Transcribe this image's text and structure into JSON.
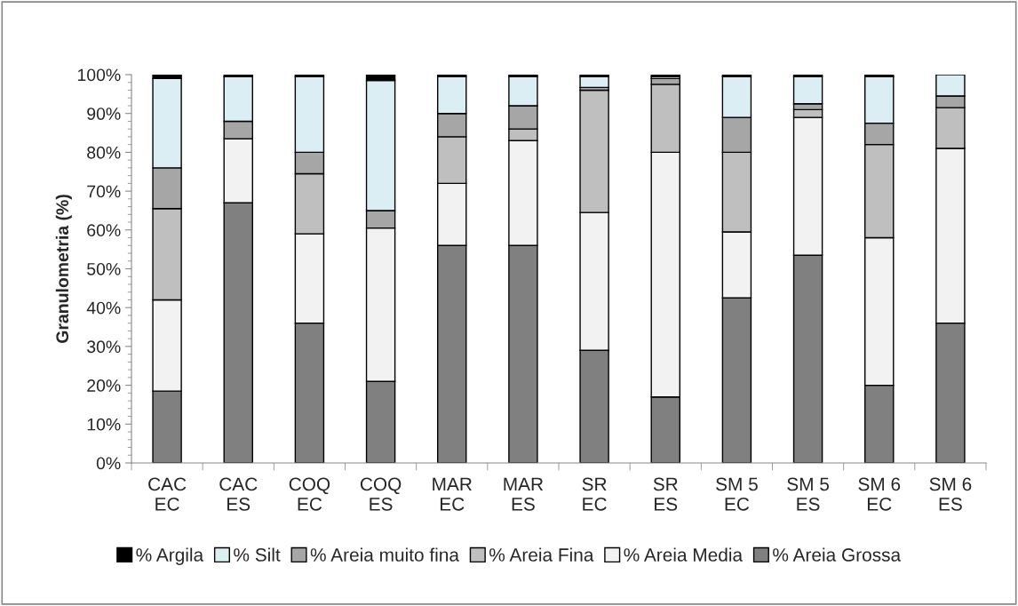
{
  "chart_data": {
    "type": "bar",
    "stacked": true,
    "ylabel": "Granulometria (%)",
    "categories": [
      "CAC\nEC",
      "CAC\nES",
      "COQ\nEC",
      "COQ\nES",
      "MAR\nEC",
      "MAR\nES",
      "SR\nEC",
      "SR\nES",
      "SM 5\nEC",
      "SM 5\nES",
      "SM 6\nEC",
      "SM 6\nES"
    ],
    "series": [
      {
        "name": "% Areia Grossa",
        "color": "#808080",
        "values": [
          18.5,
          67,
          36,
          21,
          56,
          56,
          29,
          17,
          42.5,
          53.5,
          20,
          36
        ]
      },
      {
        "name": "% Areia Media",
        "color": "#f2f2f2",
        "values": [
          23.5,
          16.5,
          23,
          39.5,
          16,
          27,
          35.5,
          63,
          17,
          35.5,
          38,
          45
        ]
      },
      {
        "name": "% Areia Fina",
        "color": "#bfbfbf",
        "values": [
          23.5,
          null,
          15.5,
          null,
          12,
          3,
          31.5,
          17.5,
          20.5,
          2,
          24,
          10.5
        ]
      },
      {
        "name": "% Areia muito fina",
        "color": "#a6a6a6",
        "values": [
          10.5,
          4.5,
          5.5,
          4.5,
          6,
          6,
          0.7,
          1.5,
          9,
          1.5,
          5.5,
          3
        ]
      },
      {
        "name": "% Silt",
        "color": "#daeef3",
        "values": [
          23,
          11.5,
          19.5,
          33.5,
          9.5,
          7.5,
          2.8,
          0.5,
          10.5,
          7,
          12,
          5.5
        ]
      },
      {
        "name": "% Argila",
        "color": "#000000",
        "values": [
          1,
          0.5,
          0.5,
          1.5,
          0.5,
          0.5,
          0.5,
          0.5,
          0.5,
          0.5,
          0.5,
          null
        ]
      }
    ],
    "ylim": [
      0,
      100
    ],
    "yticks": [
      {
        "value": 0,
        "label": "0%"
      },
      {
        "value": 10,
        "label": "10%"
      },
      {
        "value": 20,
        "label": "20%"
      },
      {
        "value": 30,
        "label": "30%"
      },
      {
        "value": 40,
        "label": "40%"
      },
      {
        "value": 50,
        "label": "50%"
      },
      {
        "value": 60,
        "label": "60%"
      },
      {
        "value": 70,
        "label": "70%"
      },
      {
        "value": 80,
        "label": "80%"
      },
      {
        "value": 90,
        "label": "90%"
      },
      {
        "value": 100,
        "label": "100%"
      }
    ],
    "legend": "bottom",
    "grid": false
  }
}
